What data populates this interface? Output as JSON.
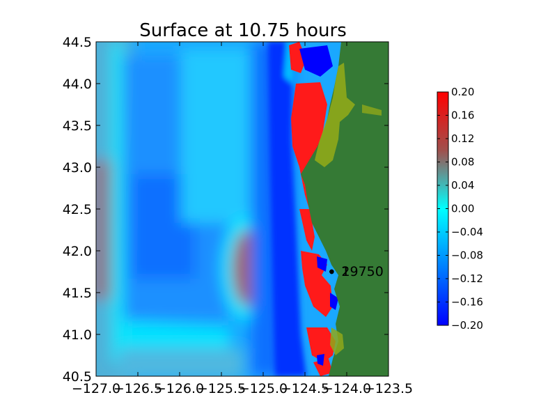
{
  "chart_data": {
    "type": "heatmap",
    "title": "Surface at 10.75 hours",
    "xlim": [
      -127.0,
      -123.5
    ],
    "ylim": [
      40.5,
      44.5
    ],
    "x_ticks": [
      "−127.0",
      "−126.5",
      "−126.0",
      "−125.5",
      "−125.0",
      "−124.5",
      "−124.0",
      "−123.5"
    ],
    "x_tick_values": [
      -127.0,
      -126.5,
      -126.0,
      -125.5,
      -125.0,
      -124.5,
      -124.0,
      -123.5
    ],
    "y_ticks": [
      "40.5",
      "41.0",
      "41.5",
      "42.0",
      "42.5",
      "43.0",
      "43.5",
      "44.0",
      "44.5"
    ],
    "y_tick_values": [
      40.5,
      41.0,
      41.5,
      42.0,
      42.5,
      43.0,
      43.5,
      44.0,
      44.5
    ],
    "colorbar": {
      "range": [
        -0.2,
        0.2
      ],
      "ticks": [
        "−0.20",
        "−0.16",
        "−0.12",
        "−0.08",
        "−0.04",
        "0.00",
        "0.04",
        "0.08",
        "0.12",
        "0.16",
        "0.20"
      ],
      "tick_values": [
        -0.2,
        -0.16,
        -0.12,
        -0.08,
        -0.04,
        0.0,
        0.04,
        0.08,
        0.12,
        0.16,
        0.2
      ],
      "colors": [
        "#0000ff",
        "#00ffff",
        "#a0504d",
        "#ff0000"
      ]
    },
    "gauges": [
      {
        "label": "1",
        "lon": -124.18,
        "lat": 41.75
      },
      {
        "label": "2",
        "lon": -124.18,
        "lat": 41.75
      },
      {
        "label": "19750",
        "lon": -124.18,
        "lat": 41.75
      }
    ],
    "land_color": "#357a35",
    "shore_color": "#8fa81a"
  }
}
